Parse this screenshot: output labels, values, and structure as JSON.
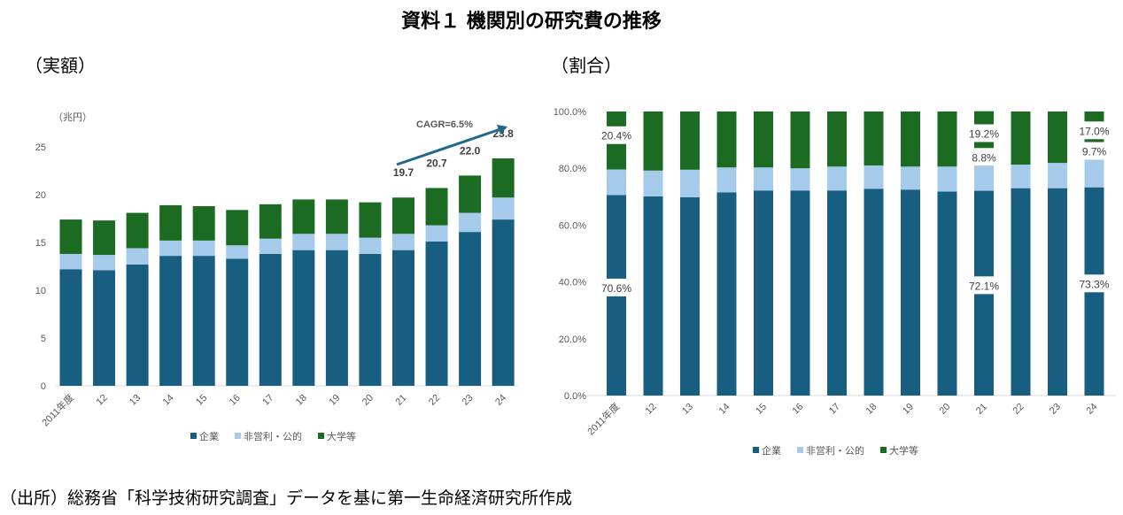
{
  "title": "資料１ 機関別の研究費の推移",
  "footer": "（出所）総務省「科学技術研究調査」データを基に第一生命経済研究所作成",
  "colors": {
    "company": "#175E80",
    "nonprofit": "#A6CBEA",
    "university": "#1C6B23",
    "arrow": "#1F6A8A"
  },
  "chart_data": [
    {
      "type": "bar",
      "stacked": true,
      "subtitle": "（実額）",
      "ylabel": "（兆円）",
      "ylim": [
        0,
        25
      ],
      "yticks": [
        "0",
        "5",
        "10",
        "15",
        "20",
        "25"
      ],
      "categories": [
        "2011年度",
        "12",
        "13",
        "14",
        "15",
        "16",
        "17",
        "18",
        "19",
        "20",
        "21",
        "22",
        "23",
        "24"
      ],
      "series": [
        {
          "name": "企業",
          "values": [
            12.2,
            12.1,
            12.7,
            13.6,
            13.6,
            13.3,
            13.8,
            14.2,
            14.2,
            13.8,
            14.2,
            15.1,
            16.1,
            17.4
          ]
        },
        {
          "name": "非営利・公的",
          "values": [
            1.6,
            1.6,
            1.7,
            1.6,
            1.6,
            1.4,
            1.6,
            1.7,
            1.7,
            1.7,
            1.7,
            1.7,
            2.0,
            2.3
          ]
        },
        {
          "name": "大学等",
          "values": [
            3.6,
            3.6,
            3.7,
            3.7,
            3.6,
            3.7,
            3.6,
            3.6,
            3.6,
            3.7,
            3.8,
            3.9,
            3.9,
            4.1
          ]
        }
      ],
      "total_labels": [
        {
          "index": 10,
          "text": "19.7",
          "value": 19.7
        },
        {
          "index": 11,
          "text": "20.7",
          "value": 20.7
        },
        {
          "index": 12,
          "text": "22.0",
          "value": 22.0
        },
        {
          "index": 13,
          "text": "23.8",
          "value": 23.8
        }
      ],
      "annotation": "CAGR=6.5%",
      "legend": "bottom"
    },
    {
      "type": "bar",
      "stacked": true,
      "subtitle": "（割合）",
      "ylim": [
        0,
        100
      ],
      "yticks": [
        "0.0%",
        "20.0%",
        "40.0%",
        "60.0%",
        "80.0%",
        "100.0%"
      ],
      "categories": [
        "2011年度",
        "12",
        "13",
        "14",
        "15",
        "16",
        "17",
        "18",
        "19",
        "20",
        "21",
        "22",
        "23",
        "24"
      ],
      "series": [
        {
          "name": "企業",
          "values": [
            70.6,
            70.1,
            69.8,
            71.5,
            72.2,
            72.2,
            72.2,
            72.8,
            72.5,
            71.8,
            72.1,
            73.0,
            73.0,
            73.3
          ]
        },
        {
          "name": "非営利・公的",
          "values": [
            9.0,
            9.1,
            9.7,
            8.8,
            8.1,
            7.8,
            8.4,
            8.2,
            8.1,
            8.8,
            8.8,
            8.3,
            8.9,
            9.7
          ]
        },
        {
          "name": "大学等",
          "values": [
            20.4,
            20.8,
            20.5,
            19.7,
            19.7,
            20.0,
            19.4,
            19.0,
            19.4,
            19.4,
            19.2,
            18.7,
            18.1,
            17.0
          ]
        }
      ],
      "data_labels": [
        {
          "index": 0,
          "series": 0,
          "text": "70.6%"
        },
        {
          "index": 0,
          "series": 2,
          "text": "20.4%"
        },
        {
          "index": 10,
          "series": 0,
          "text": "72.1%"
        },
        {
          "index": 10,
          "series": 1,
          "text": "8.8%"
        },
        {
          "index": 10,
          "series": 2,
          "text": "19.2%"
        },
        {
          "index": 13,
          "series": 0,
          "text": "73.3%"
        },
        {
          "index": 13,
          "series": 1,
          "text": "9.7%"
        },
        {
          "index": 13,
          "series": 2,
          "text": "17.0%"
        }
      ],
      "legend": "bottom"
    }
  ]
}
